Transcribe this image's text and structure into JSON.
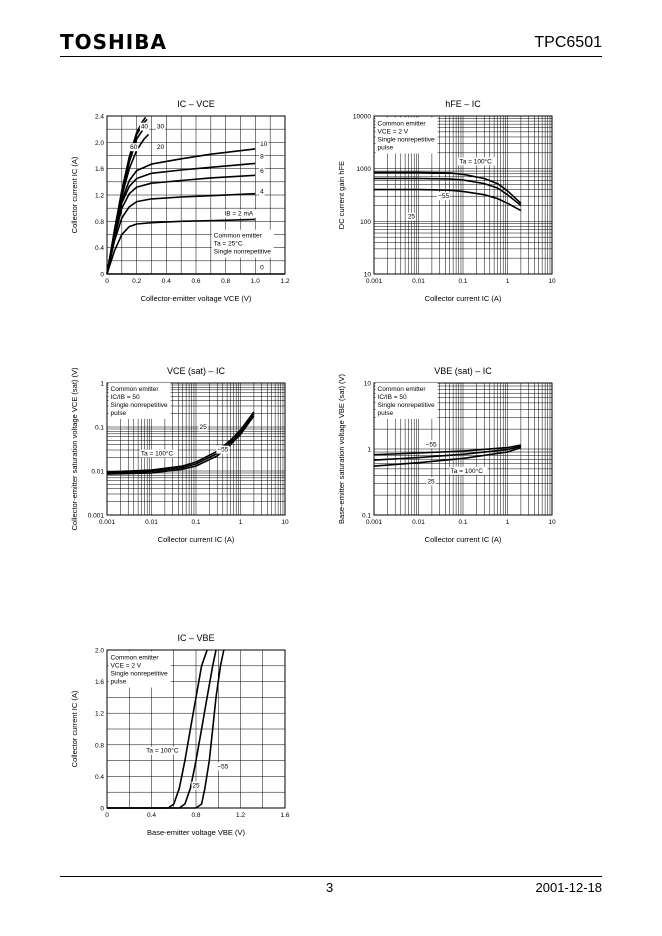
{
  "header": {
    "brand": "TOSHIBA",
    "part": "TPC6501"
  },
  "footer": {
    "page": "3",
    "date": "2001-12-18"
  },
  "chart_data": [
    {
      "id": "ic_vce",
      "type": "line",
      "title": "IC – VCE",
      "xlabel": "Collector-emitter voltage VCE (V)",
      "ylabel": "Collector current IC (A)",
      "xscale": "linear",
      "yscale": "linear",
      "xlim": [
        0,
        1.2
      ],
      "ylim": [
        0,
        2.4
      ],
      "xticks": [
        "0",
        "0.2",
        "0.4",
        "0.6",
        "0.8",
        "1.0",
        "1.2"
      ],
      "yticks": [
        "0",
        "0.4",
        "0.8",
        "1.2",
        "1.6",
        "2.0",
        "2.4"
      ],
      "note": [
        "Common emitter",
        "Ta = 25°C",
        "Single nonrepetitive"
      ],
      "curve_labels": [
        "40",
        "30",
        "60",
        "20",
        "10",
        "8",
        "6",
        "4",
        "IB = 2 mA",
        "0"
      ],
      "series": [
        {
          "name": "2 mA",
          "x": [
            0,
            0.05,
            0.1,
            0.15,
            0.2,
            0.3,
            0.5,
            0.7,
            1.0
          ],
          "y": [
            0,
            0.35,
            0.6,
            0.72,
            0.76,
            0.78,
            0.8,
            0.81,
            0.83
          ]
        },
        {
          "name": "4",
          "x": [
            0,
            0.05,
            0.1,
            0.15,
            0.2,
            0.3,
            0.5,
            0.7,
            1.0
          ],
          "y": [
            0,
            0.5,
            0.85,
            1.02,
            1.1,
            1.14,
            1.17,
            1.19,
            1.22
          ]
        },
        {
          "name": "6",
          "x": [
            0,
            0.05,
            0.1,
            0.15,
            0.2,
            0.3,
            0.5,
            0.7,
            1.0
          ],
          "y": [
            0,
            0.55,
            1.0,
            1.22,
            1.32,
            1.38,
            1.42,
            1.46,
            1.5
          ]
        },
        {
          "name": "8",
          "x": [
            0,
            0.05,
            0.1,
            0.15,
            0.2,
            0.3,
            0.5,
            0.7,
            1.0
          ],
          "y": [
            0,
            0.58,
            1.08,
            1.33,
            1.45,
            1.53,
            1.58,
            1.62,
            1.68
          ]
        },
        {
          "name": "10",
          "x": [
            0,
            0.05,
            0.1,
            0.15,
            0.2,
            0.3,
            0.5,
            0.7,
            1.0
          ],
          "y": [
            0,
            0.6,
            1.12,
            1.42,
            1.57,
            1.67,
            1.75,
            1.82,
            1.9
          ]
        },
        {
          "name": "20",
          "x": [
            0,
            0.05,
            0.1,
            0.15,
            0.2,
            0.25,
            0.28
          ],
          "y": [
            0,
            0.62,
            1.18,
            1.6,
            1.88,
            2.05,
            2.12
          ]
        },
        {
          "name": "30",
          "x": [
            0,
            0.05,
            0.1,
            0.15,
            0.2,
            0.25,
            0.28
          ],
          "y": [
            0,
            0.64,
            1.22,
            1.7,
            2.05,
            2.22,
            2.3
          ]
        },
        {
          "name": "40",
          "x": [
            0,
            0.05,
            0.1,
            0.15,
            0.2,
            0.25,
            0.27
          ],
          "y": [
            0,
            0.65,
            1.25,
            1.75,
            2.12,
            2.3,
            2.35
          ]
        },
        {
          "name": "60",
          "x": [
            0,
            0.05,
            0.1,
            0.15,
            0.2,
            0.24,
            0.26
          ],
          "y": [
            0,
            0.66,
            1.27,
            1.78,
            2.15,
            2.32,
            2.38
          ]
        }
      ],
      "baseline": {
        "x": [
          0,
          1.2
        ],
        "y": [
          0,
          0
        ]
      }
    },
    {
      "id": "hfe_ic",
      "type": "line",
      "title": "hFE – IC",
      "xlabel": "Collector current IC (A)",
      "ylabel": "DC current gain hFE",
      "xscale": "log",
      "yscale": "log",
      "xlim": [
        0.001,
        10
      ],
      "ylim": [
        10,
        10000
      ],
      "xticks": [
        "0.001",
        "0.01",
        "0.1",
        "1",
        "10"
      ],
      "yticks": [
        "10",
        "100",
        "1000",
        "10000"
      ],
      "note": [
        "Common emitter",
        "VCE = 2 V",
        "Single nonrepetitive",
        "pulse"
      ],
      "curve_labels": [
        "Ta = 100°C",
        "−55",
        "25"
      ],
      "series": [
        {
          "name": "Ta = 100°C",
          "x": [
            0.001,
            0.01,
            0.05,
            0.1,
            0.3,
            0.6,
            1,
            2
          ],
          "y": [
            850,
            850,
            830,
            780,
            650,
            520,
            380,
            220
          ]
        },
        {
          "name": "25",
          "x": [
            0.001,
            0.01,
            0.05,
            0.1,
            0.3,
            0.6,
            1,
            2
          ],
          "y": [
            650,
            650,
            640,
            610,
            520,
            430,
            320,
            200
          ]
        },
        {
          "name": "−55",
          "x": [
            0.001,
            0.01,
            0.05,
            0.1,
            0.3,
            0.6,
            1,
            2
          ],
          "y": [
            400,
            400,
            390,
            370,
            320,
            270,
            220,
            160
          ]
        }
      ]
    },
    {
      "id": "vcesat_ic",
      "type": "line",
      "title": "VCE (sat) – IC",
      "xlabel": "Collector current IC (A)",
      "ylabel": "Collector-emitter saturation voltage VCE (sat) (V)",
      "xscale": "log",
      "yscale": "log",
      "xlim": [
        0.001,
        10
      ],
      "ylim": [
        0.001,
        1
      ],
      "xticks": [
        "0.001",
        "0.01",
        "0.1",
        "1",
        "10"
      ],
      "yticks": [
        "0.001",
        "0.01",
        "0.1",
        "1"
      ],
      "note": [
        "Common emitter",
        "IC/IB = 50",
        "Single nonrepetitive",
        "pulse"
      ],
      "curve_labels": [
        "25",
        "Ta = 100°C",
        "−55"
      ],
      "series": [
        {
          "name": "Ta = 100°C",
          "x": [
            0.001,
            0.01,
            0.05,
            0.1,
            0.3,
            0.6,
            1,
            2
          ],
          "y": [
            0.0095,
            0.0105,
            0.013,
            0.016,
            0.028,
            0.05,
            0.085,
            0.22
          ]
        },
        {
          "name": "25",
          "x": [
            0.001,
            0.01,
            0.05,
            0.1,
            0.3,
            0.6,
            1,
            2
          ],
          "y": [
            0.009,
            0.0098,
            0.012,
            0.0145,
            0.025,
            0.045,
            0.075,
            0.2
          ]
        },
        {
          "name": "−55",
          "x": [
            0.001,
            0.01,
            0.05,
            0.1,
            0.3,
            0.6,
            1,
            2
          ],
          "y": [
            0.0085,
            0.009,
            0.011,
            0.013,
            0.022,
            0.04,
            0.068,
            0.18
          ]
        }
      ]
    },
    {
      "id": "vbesat_ic",
      "type": "line",
      "title": "VBE (sat) – IC",
      "xlabel": "Collector current IC (A)",
      "ylabel": "Base-emitter saturation voltage VBE (sat) (V)",
      "xscale": "log",
      "yscale": "log",
      "xlim": [
        0.001,
        10
      ],
      "ylim": [
        0.1,
        10
      ],
      "xticks": [
        "0.001",
        "0.01",
        "0.1",
        "1",
        "10"
      ],
      "yticks": [
        "0.1",
        "1",
        "10"
      ],
      "note": [
        "Common emitter",
        "IC/IB = 50",
        "Single nonrepetitive",
        "pulse"
      ],
      "curve_labels": [
        "−55",
        "25",
        "Ta = 100°C"
      ],
      "series": [
        {
          "name": "−55",
          "x": [
            0.001,
            0.01,
            0.1,
            1,
            2
          ],
          "y": [
            0.82,
            0.87,
            0.93,
            1.05,
            1.15
          ]
        },
        {
          "name": "25",
          "x": [
            0.001,
            0.01,
            0.1,
            1,
            2
          ],
          "y": [
            0.68,
            0.74,
            0.83,
            0.98,
            1.1
          ]
        },
        {
          "name": "Ta = 100°C",
          "x": [
            0.001,
            0.01,
            0.1,
            1,
            2
          ],
          "y": [
            0.55,
            0.62,
            0.72,
            0.9,
            1.05
          ]
        }
      ]
    },
    {
      "id": "ic_vbe",
      "type": "line",
      "title": "IC – VBE",
      "xlabel": "Base-emitter voltage VBE (V)",
      "ylabel": "Collector current IC (A)",
      "xscale": "linear",
      "yscale": "linear",
      "xlim": [
        0,
        1.6
      ],
      "ylim": [
        0,
        2.0
      ],
      "xticks": [
        "0",
        "0.4",
        "0.8",
        "1.2",
        "1.6"
      ],
      "yticks": [
        "0",
        "0.4",
        "0.8",
        "1.2",
        "1.6",
        "2.0"
      ],
      "note": [
        "Common emitter",
        "VCE = 2 V",
        "Single nonrepetitive",
        "pulse"
      ],
      "curve_labels": [
        "Ta = 100°C",
        "25",
        "−55"
      ],
      "series": [
        {
          "name": "Ta = 100°C",
          "x": [
            0,
            0.55,
            0.6,
            0.65,
            0.7,
            0.75,
            0.8,
            0.85,
            0.9
          ],
          "y": [
            0,
            0.0,
            0.05,
            0.25,
            0.6,
            1.0,
            1.4,
            1.8,
            2.0
          ]
        },
        {
          "name": "25",
          "x": [
            0,
            0.65,
            0.7,
            0.75,
            0.8,
            0.85,
            0.9,
            0.95,
            0.98
          ],
          "y": [
            0,
            0.0,
            0.05,
            0.25,
            0.6,
            1.0,
            1.4,
            1.8,
            2.0
          ]
        },
        {
          "name": "−55",
          "x": [
            0,
            0.8,
            0.85,
            0.88,
            0.92,
            0.95,
            0.98,
            1.02,
            1.05
          ],
          "y": [
            0,
            0.0,
            0.05,
            0.25,
            0.6,
            1.0,
            1.4,
            1.8,
            2.0
          ]
        }
      ]
    }
  ]
}
